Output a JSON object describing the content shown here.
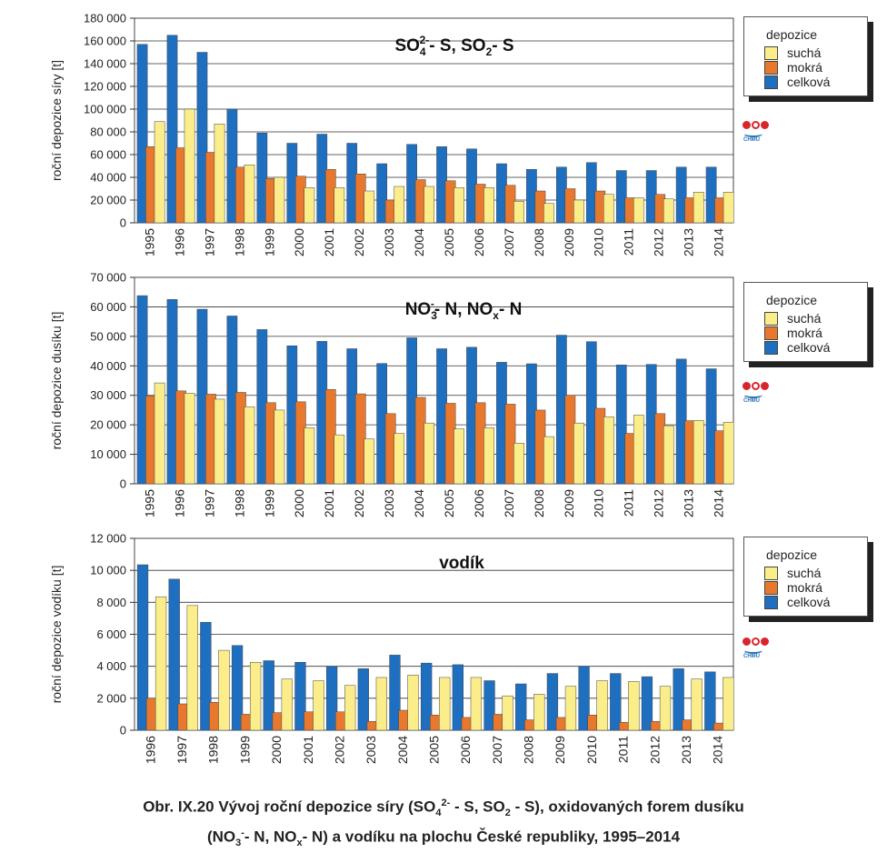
{
  "colors": {
    "sucha": "#fbee8a",
    "mokra": "#e8782e",
    "celkova": "#1f6fc0"
  },
  "legend": {
    "title": "depozice",
    "items": [
      "suchá",
      "mokrá",
      "celková"
    ]
  },
  "logo": {
    "name": "chmu-logo",
    "text": "ČHMÚ"
  },
  "caption": {
    "line1_pre": "Obr. IX.20  Vývoj roční depozice síry (SO",
    "line1_sub": "4",
    "line1_sup": "2-",
    "line1_mid": " - S, SO",
    "line1_sub2": "2",
    "line1_post": " - S), oxidovaných forem dusíku",
    "line2_pre": "(NO",
    "line2_sub": "3",
    "line2_sup": "-",
    "line2_mid": "- N, NO",
    "line2_sub2": "x",
    "line2_post": "- N) a vodíku na plochu České republiky, 1995–2014"
  },
  "chart_data": [
    {
      "type": "bar",
      "title_parts": [
        "SO",
        "4",
        "2-",
        "- S, SO",
        "2",
        "- S"
      ],
      "ylabel": "roční depozice síry [t]",
      "ylim": [
        0,
        180000
      ],
      "yticks": [
        0,
        20000,
        40000,
        60000,
        80000,
        100000,
        120000,
        140000,
        160000,
        180000
      ],
      "ytick_labels": [
        "0",
        "20 000",
        "40 000",
        "60 000",
        "80 000",
        "100 000",
        "120 000",
        "140 000",
        "160 000",
        "180 000"
      ],
      "grid": true,
      "legend_position": "right",
      "categories": [
        "1995",
        "1996",
        "1997",
        "1998",
        "1999",
        "2000",
        "2001",
        "2002",
        "2003",
        "2004",
        "2005",
        "2006",
        "2007",
        "2008",
        "2009",
        "2010",
        "2011",
        "2012",
        "2013",
        "2014"
      ],
      "series": [
        {
          "name": "celková",
          "values": [
            157000,
            165000,
            150000,
            100000,
            79000,
            70000,
            78000,
            70000,
            52000,
            69000,
            67000,
            65000,
            52000,
            47000,
            49000,
            53000,
            46000,
            46000,
            49000,
            49000
          ]
        },
        {
          "name": "mokrá",
          "values": [
            67000,
            66000,
            62000,
            49000,
            39000,
            41000,
            47000,
            43000,
            20000,
            38000,
            37000,
            34000,
            33000,
            28000,
            30000,
            28000,
            22000,
            25000,
            22000,
            22000
          ]
        },
        {
          "name": "suchá",
          "values": [
            89000,
            100000,
            87000,
            51000,
            40000,
            31000,
            31000,
            28000,
            32000,
            32000,
            31000,
            31000,
            19000,
            17000,
            20000,
            25000,
            22000,
            21000,
            27000,
            27000
          ]
        }
      ]
    },
    {
      "type": "bar",
      "title_parts": [
        "NO",
        "3",
        "-",
        "- N, NO",
        "x",
        "- N"
      ],
      "ylabel": "roční depozice dusíku [t]",
      "ylim": [
        0,
        70000
      ],
      "yticks": [
        0,
        10000,
        20000,
        30000,
        40000,
        50000,
        60000,
        70000
      ],
      "ytick_labels": [
        "0",
        "10 000",
        "20 000",
        "30 000",
        "40 000",
        "50 000",
        "60 000",
        "70 000"
      ],
      "grid": true,
      "legend_position": "right",
      "categories": [
        "1995",
        "1996",
        "1997",
        "1998",
        "1999",
        "2000",
        "2001",
        "2002",
        "2003",
        "2004",
        "2005",
        "2006",
        "2007",
        "2008",
        "2009",
        "2010",
        "2011",
        "2012",
        "2013",
        "2014"
      ],
      "series": [
        {
          "name": "celková",
          "values": [
            63800,
            62500,
            59200,
            56900,
            52300,
            46800,
            48300,
            45800,
            40800,
            49500,
            45800,
            46300,
            41200,
            40700,
            50400,
            48200,
            40300,
            40500,
            42300,
            39000
          ]
        },
        {
          "name": "mokrá",
          "values": [
            29800,
            31500,
            30400,
            31000,
            27500,
            27800,
            32000,
            30500,
            23800,
            29300,
            27300,
            27500,
            27000,
            25000,
            30000,
            25600,
            17100,
            23800,
            21400,
            18000
          ]
        },
        {
          "name": "suchá",
          "values": [
            34200,
            30700,
            28700,
            26100,
            25000,
            19000,
            16600,
            15200,
            17100,
            20600,
            18600,
            19000,
            13800,
            16000,
            20600,
            22700,
            23300,
            19700,
            21500,
            20900
          ]
        }
      ]
    },
    {
      "type": "bar",
      "title_parts": [
        "vodík"
      ],
      "ylabel": "roční depozice vodíku [t]",
      "ylim": [
        0,
        12000
      ],
      "yticks": [
        0,
        2000,
        4000,
        6000,
        8000,
        10000,
        12000
      ],
      "ytick_labels": [
        "0",
        "2 000",
        "4 000",
        "6 000",
        "8 000",
        "10 000",
        "12 000"
      ],
      "grid": true,
      "legend_position": "right",
      "categories": [
        "1996",
        "1997",
        "1998",
        "1999",
        "2000",
        "2001",
        "2002",
        "2003",
        "2004",
        "2005",
        "2006",
        "2007",
        "2008",
        "2009",
        "2010",
        "2011",
        "2012",
        "2013",
        "2014"
      ],
      "series": [
        {
          "name": "celková",
          "values": [
            10350,
            9450,
            6750,
            5300,
            4350,
            4250,
            4000,
            3850,
            4700,
            4200,
            4100,
            3100,
            2900,
            3550,
            4000,
            3550,
            3350,
            3850,
            3650
          ]
        },
        {
          "name": "mokrá",
          "values": [
            2000,
            1650,
            1750,
            1000,
            1100,
            1150,
            1150,
            550,
            1250,
            950,
            800,
            1000,
            650,
            800,
            950,
            500,
            550,
            650,
            450
          ]
        },
        {
          "name": "suchá",
          "values": [
            8350,
            7800,
            5000,
            4250,
            3200,
            3100,
            2800,
            3300,
            3450,
            3300,
            3300,
            2150,
            2250,
            2750,
            3100,
            3050,
            2750,
            3200,
            3300
          ]
        }
      ]
    }
  ]
}
